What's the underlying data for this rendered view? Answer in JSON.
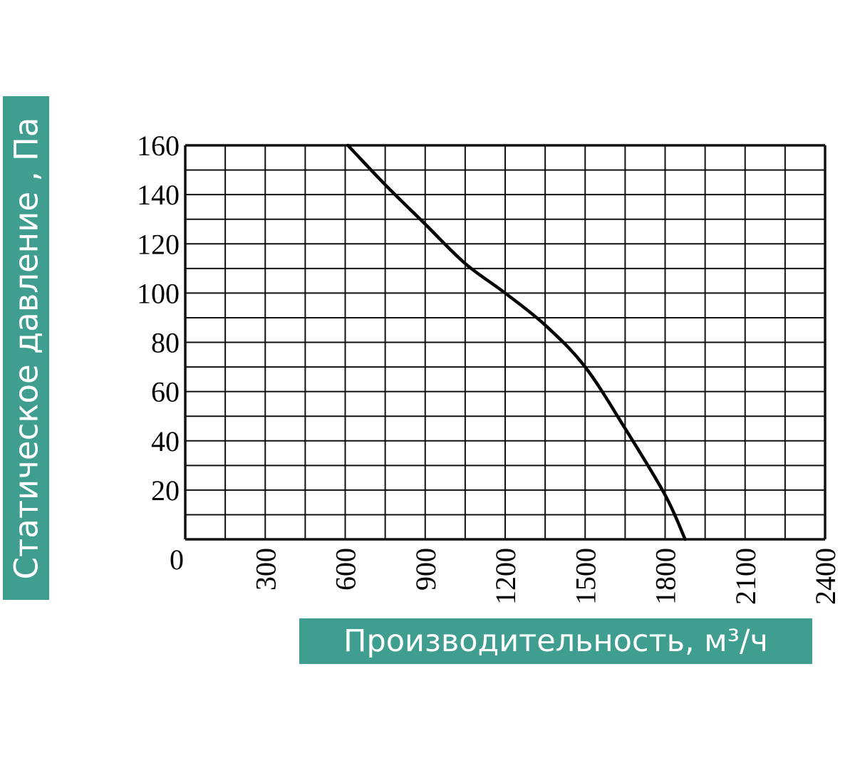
{
  "chart_data": {
    "type": "line",
    "title": "",
    "xlabel": "Производительность, м³/ч",
    "ylabel": "Статическое давление , Па",
    "xlim": [
      0,
      2400
    ],
    "ylim": [
      0,
      160
    ],
    "x_ticks": [
      0,
      300,
      600,
      900,
      1200,
      1500,
      1800,
      2100,
      2400
    ],
    "y_ticks": [
      20,
      40,
      60,
      80,
      100,
      120,
      140,
      160
    ],
    "x_grid_step": 150,
    "y_grid_step": 10,
    "grid": true,
    "label_color": "#409e91",
    "series": [
      {
        "color": "#000000",
        "points": [
          [
            610,
            160
          ],
          [
            750,
            144
          ],
          [
            900,
            128
          ],
          [
            1050,
            112
          ],
          [
            1200,
            100
          ],
          [
            1350,
            87
          ],
          [
            1500,
            70
          ],
          [
            1650,
            45
          ],
          [
            1800,
            18
          ],
          [
            1875,
            0
          ]
        ]
      }
    ]
  }
}
